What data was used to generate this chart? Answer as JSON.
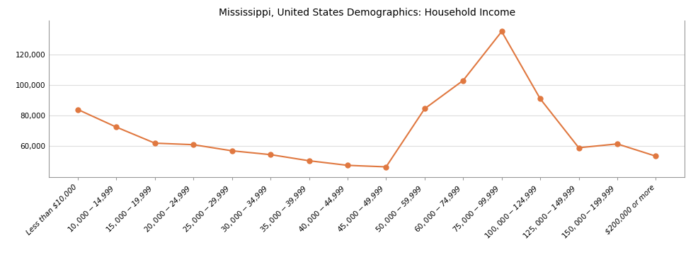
{
  "title": "Mississippi, United States Demographics: Household Income",
  "categories": [
    "Less than $10,000",
    "$10,000 - $14,999",
    "$15,000 - $19,999",
    "$20,000 - $24,999",
    "$25,000 - $29,999",
    "$30,000 - $34,999",
    "$35,000 - $39,999",
    "$40,000 - $44,999",
    "$45,000 - $49,999",
    "$50,000 - $59,999",
    "$60,000 - $74,999",
    "$75,000 - $99,999",
    "$100,000 - $124,999",
    "$125,000 - $149,999",
    "$150,000 - $199,999",
    "$200,000 or more"
  ],
  "values": [
    84000,
    72500,
    62000,
    61000,
    57000,
    54500,
    50500,
    47500,
    46500,
    84500,
    103000,
    135000,
    91000,
    59000,
    61500,
    53500
  ],
  "line_color": "#E07840",
  "marker_color": "#E07840",
  "marker_size": 5,
  "line_width": 1.5,
  "bg_color": "#ffffff",
  "plot_bg_color": "#ffffff",
  "title_fontsize": 10,
  "tick_fontsize": 7.5,
  "yticks": [
    60000,
    80000,
    100000,
    120000
  ],
  "ylim": [
    40000,
    142000
  ],
  "grid_color": "#dddddd",
  "spine_color": "#999999"
}
